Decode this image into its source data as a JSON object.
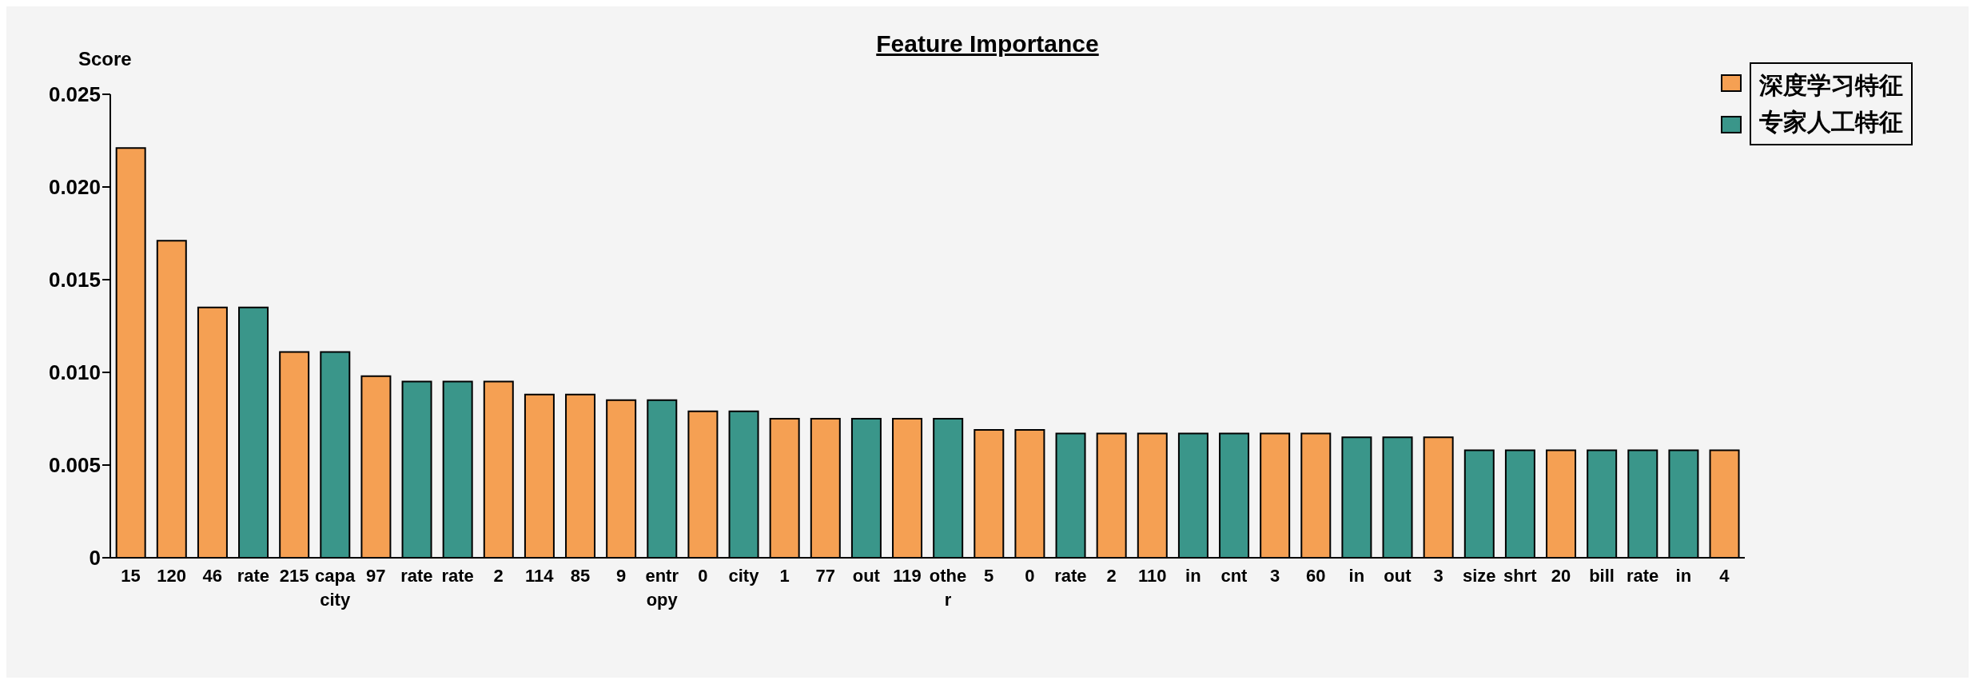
{
  "chart_data": {
    "type": "bar",
    "title": "Feature Importance",
    "ylabel": "Score",
    "categories": [
      "15",
      "120",
      "46",
      "rate",
      "215",
      "capacity",
      "97",
      "rate",
      "rate",
      "2",
      "114",
      "85",
      "9",
      "entropy",
      "0",
      "city",
      "1",
      "77",
      "out",
      "119",
      "other",
      "5",
      "0",
      "rate",
      "2",
      "110",
      "in",
      "cnt",
      "3",
      "60",
      "in",
      "out",
      "3",
      "size",
      "shrt",
      "20",
      "bill",
      "rate",
      "in",
      "4"
    ],
    "series": [
      {
        "name": "深度学习特征",
        "color": "#f5a053",
        "values": [
          0.0221,
          0.0171,
          0.0135,
          null,
          0.0111,
          null,
          0.0098,
          null,
          null,
          0.0095,
          0.0088,
          0.0088,
          0.0085,
          null,
          0.0079,
          null,
          0.0075,
          0.0075,
          null,
          0.0075,
          null,
          0.0069,
          0.0069,
          null,
          0.0067,
          0.0067,
          null,
          null,
          0.0067,
          0.0067,
          null,
          null,
          0.0065,
          null,
          null,
          0.0058,
          null,
          null,
          null,
          0.0058
        ]
      },
      {
        "name": "专家人工特征",
        "color": "#3a968a",
        "values": [
          null,
          null,
          null,
          0.0135,
          null,
          0.0111,
          null,
          0.0095,
          0.0095,
          null,
          null,
          null,
          null,
          0.0085,
          null,
          0.0079,
          null,
          null,
          0.0075,
          null,
          0.0075,
          null,
          null,
          0.0067,
          null,
          null,
          0.0067,
          0.0067,
          null,
          null,
          0.0065,
          0.0065,
          null,
          0.0058,
          0.0058,
          null,
          0.0058,
          0.0058,
          0.0058,
          null
        ]
      }
    ],
    "stacked": true,
    "ylim": [
      0,
      0.025
    ],
    "yticks": [
      0,
      0.005,
      {
        "value": 0.01,
        "label": "0.010"
      },
      0.015,
      {
        "value": 0.02,
        "label": "0.020"
      },
      0.025
    ],
    "grid": false,
    "legend": "top right"
  }
}
